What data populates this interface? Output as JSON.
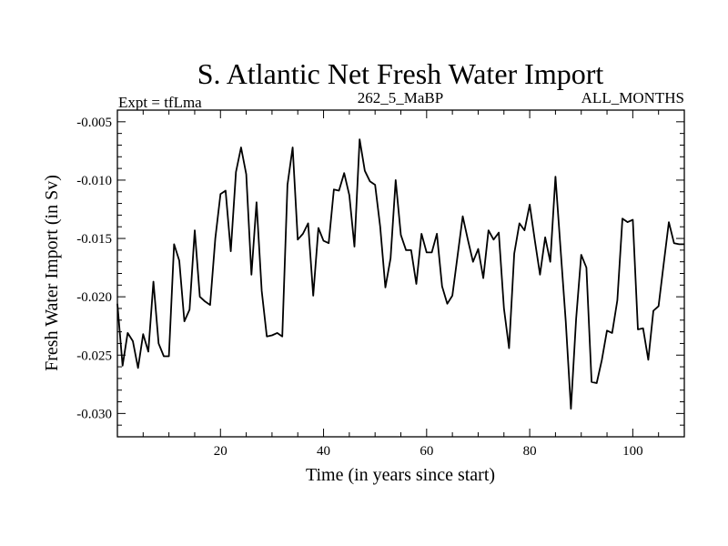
{
  "chart_data": {
    "type": "line",
    "title": "S. Atlantic Net Fresh Water Import",
    "subtitle_left": "Expt = tfLma",
    "subtitle_center": "262_5_MaBP",
    "subtitle_right": "ALL_MONTHS",
    "xlabel": "Time (in years since start)",
    "ylabel": "Fresh Water Import (in Sv)",
    "xlim": [
      0,
      110
    ],
    "ylim": [
      -0.032,
      -0.004
    ],
    "xticks": [
      20,
      40,
      60,
      80,
      100
    ],
    "xtick_labels": [
      "20",
      "40",
      "60",
      "80",
      "100"
    ],
    "yticks": [
      -0.005,
      -0.01,
      -0.015,
      -0.02,
      -0.025,
      -0.03
    ],
    "ytick_labels": [
      "-0.005",
      "-0.010",
      "-0.015",
      "-0.020",
      "-0.025",
      "-0.030"
    ],
    "series": [
      {
        "name": "Fresh Water Import",
        "color": "#000000",
        "x": [
          0,
          1,
          2,
          3,
          4,
          5,
          6,
          7,
          8,
          9,
          10,
          11,
          12,
          13,
          14,
          15,
          16,
          17,
          18,
          19,
          20,
          21,
          22,
          23,
          24,
          25,
          26,
          27,
          28,
          29,
          30,
          31,
          32,
          33,
          34,
          35,
          36,
          37,
          38,
          39,
          40,
          41,
          42,
          43,
          44,
          45,
          46,
          47,
          48,
          49,
          50,
          51,
          52,
          53,
          54,
          55,
          56,
          57,
          58,
          59,
          60,
          61,
          62,
          63,
          64,
          65,
          66,
          67,
          68,
          69,
          70,
          71,
          72,
          73,
          74,
          75,
          76,
          77,
          78,
          79,
          80,
          81,
          82,
          83,
          84,
          85,
          86,
          87,
          88,
          89,
          90,
          91,
          92,
          93,
          94,
          95,
          96,
          97,
          98,
          99,
          100,
          101,
          102,
          103,
          104,
          105,
          106,
          107,
          108,
          109,
          110
        ],
        "y": [
          -0.0206,
          -0.0259,
          -0.0231,
          -0.0238,
          -0.0261,
          -0.0232,
          -0.0247,
          -0.0187,
          -0.024,
          -0.0251,
          -0.0251,
          -0.0155,
          -0.0169,
          -0.0221,
          -0.0211,
          -0.0143,
          -0.02,
          -0.0204,
          -0.0207,
          -0.015,
          -0.0112,
          -0.0109,
          -0.0161,
          -0.0093,
          -0.0072,
          -0.0095,
          -0.0181,
          -0.0119,
          -0.0195,
          -0.0234,
          -0.0233,
          -0.0231,
          -0.0234,
          -0.0104,
          -0.0072,
          -0.0151,
          -0.0146,
          -0.0137,
          -0.0199,
          -0.0141,
          -0.0152,
          -0.0154,
          -0.0108,
          -0.0109,
          -0.0094,
          -0.0113,
          -0.0157,
          -0.0065,
          -0.0092,
          -0.0101,
          -0.0104,
          -0.014,
          -0.0192,
          -0.0167,
          -0.01,
          -0.0147,
          -0.016,
          -0.016,
          -0.0189,
          -0.0146,
          -0.0162,
          -0.0162,
          -0.0146,
          -0.0191,
          -0.0206,
          -0.0199,
          -0.0165,
          -0.0131,
          -0.0151,
          -0.017,
          -0.0159,
          -0.0184,
          -0.0143,
          -0.0151,
          -0.0145,
          -0.021,
          -0.0244,
          -0.0163,
          -0.0137,
          -0.0143,
          -0.0121,
          -0.0152,
          -0.0181,
          -0.0149,
          -0.017,
          -0.0097,
          -0.016,
          -0.0221,
          -0.0296,
          -0.0219,
          -0.0164,
          -0.0175,
          -0.0273,
          -0.0274,
          -0.0254,
          -0.0229,
          -0.0231,
          -0.0203,
          -0.0133,
          -0.0136,
          -0.0134,
          -0.0228,
          -0.0227,
          -0.0254,
          -0.0212,
          -0.0208,
          -0.0172,
          -0.0136,
          -0.0154,
          -0.0155,
          -0.0155
        ]
      }
    ]
  }
}
